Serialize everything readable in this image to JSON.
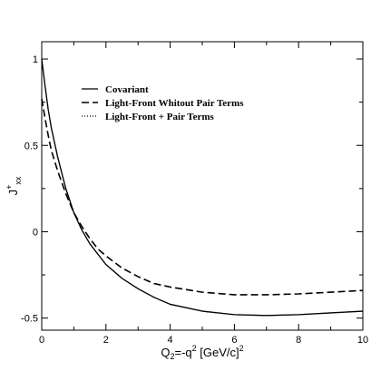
{
  "chart_data": {
    "type": "line",
    "title": "",
    "xlabel_parts": {
      "base": "Q",
      "sub": "2",
      "mid": "=-q",
      "sup": "2",
      "unit": " [GeV/c]",
      "unit_sup": "2"
    },
    "ylabel_parts": {
      "base": "J",
      "sup": "+",
      "sub": "xx"
    },
    "xlim": [
      0,
      10
    ],
    "ylim": [
      -0.57,
      1.1
    ],
    "x_ticks": [
      0,
      2,
      4,
      6,
      8,
      10
    ],
    "x_tick_labels": [
      "0",
      "2",
      "4",
      "6",
      "8",
      "10"
    ],
    "y_ticks": [
      -0.5,
      0,
      0.5,
      1
    ],
    "y_tick_labels": [
      "-0.5",
      "0",
      "0.5",
      "1"
    ],
    "grid": false,
    "legend_position": "top-left",
    "series": [
      {
        "name": "Covariant",
        "style": "solid",
        "x": [
          0,
          0.1,
          0.2,
          0.3,
          0.5,
          0.75,
          1.0,
          1.25,
          1.5,
          1.75,
          2.0,
          2.5,
          3.0,
          3.5,
          4.0,
          5.0,
          6.0,
          7.0,
          8.0,
          9.0,
          10.0
        ],
        "y": [
          1.0,
          0.85,
          0.71,
          0.6,
          0.43,
          0.25,
          0.11,
          0.01,
          -0.07,
          -0.13,
          -0.19,
          -0.27,
          -0.33,
          -0.38,
          -0.42,
          -0.46,
          -0.48,
          -0.485,
          -0.48,
          -0.47,
          -0.46
        ]
      },
      {
        "name": "Light-Front Whitout Pair Terms",
        "style": "dashed",
        "x": [
          0,
          0.1,
          0.2,
          0.3,
          0.5,
          0.75,
          1.0,
          1.25,
          1.5,
          1.75,
          2.0,
          2.5,
          3.0,
          3.5,
          4.0,
          5.0,
          6.0,
          7.0,
          8.0,
          9.0,
          10.0
        ],
        "y": [
          0.77,
          0.66,
          0.56,
          0.47,
          0.35,
          0.22,
          0.11,
          0.03,
          -0.04,
          -0.1,
          -0.14,
          -0.21,
          -0.26,
          -0.3,
          -0.32,
          -0.35,
          -0.365,
          -0.365,
          -0.36,
          -0.35,
          -0.34
        ]
      },
      {
        "name": "Light-Front + Pair Terms",
        "style": "dotted",
        "x": [
          0,
          0.1,
          0.2,
          0.3,
          0.5,
          0.75,
          1.0,
          1.25,
          1.5,
          1.75,
          2.0,
          2.5,
          3.0,
          3.5,
          4.0,
          5.0,
          6.0,
          7.0,
          8.0,
          9.0,
          10.0
        ],
        "y": [
          1.0,
          0.85,
          0.71,
          0.6,
          0.43,
          0.25,
          0.11,
          0.01,
          -0.07,
          -0.13,
          -0.19,
          -0.27,
          -0.33,
          -0.38,
          -0.42,
          -0.46,
          -0.48,
          -0.485,
          -0.48,
          -0.47,
          -0.46
        ]
      }
    ]
  }
}
